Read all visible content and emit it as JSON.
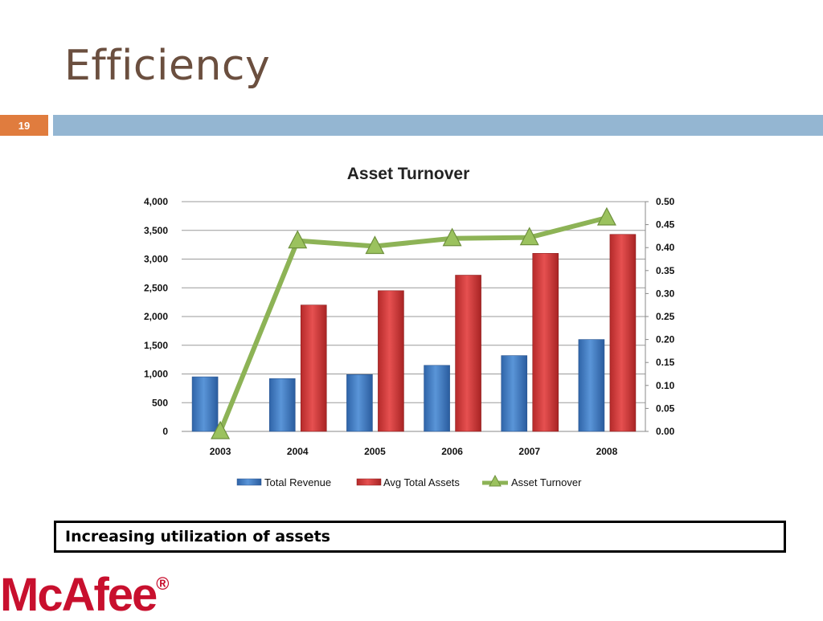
{
  "slide": {
    "title": "Efficiency",
    "number": "19",
    "callout": "Increasing utilization of assets",
    "logo": "McAfee",
    "logo_mark": "®"
  },
  "colors": {
    "title": "#6b4f3f",
    "accent_box": "#e07c3e",
    "band": "#94b6d2",
    "revenue": "#3f7cc4",
    "assets": "#d23b3b",
    "turnover": "#8db356",
    "logo": "#c8102e"
  },
  "chart_data": {
    "type": "bar",
    "title": "Asset Turnover",
    "categories": [
      "2003",
      "2004",
      "2005",
      "2006",
      "2007",
      "2008"
    ],
    "y_left": {
      "ylim": [
        0,
        4000
      ],
      "ticks": [
        "0",
        "500",
        "1,000",
        "1,500",
        "2,000",
        "2,500",
        "3,000",
        "3,500",
        "4,000"
      ]
    },
    "y_right": {
      "ylim": [
        0,
        0.5
      ],
      "ticks": [
        "0.00",
        "0.05",
        "0.10",
        "0.15",
        "0.20",
        "0.25",
        "0.30",
        "0.35",
        "0.40",
        "0.45",
        "0.50"
      ]
    },
    "series": [
      {
        "name": "Total Revenue",
        "type": "bar",
        "axis": "left",
        "values": [
          950,
          920,
          990,
          1150,
          1320,
          1600
        ]
      },
      {
        "name": "Avg Total Assets",
        "type": "bar",
        "axis": "left",
        "values": [
          null,
          2200,
          2450,
          2720,
          3100,
          3430
        ]
      },
      {
        "name": "Asset Turnover",
        "type": "line",
        "axis": "right",
        "marker": "triangle",
        "values": [
          0.0,
          0.415,
          0.403,
          0.42,
          0.422,
          0.465
        ]
      }
    ],
    "grid": true,
    "legend": "bottom"
  }
}
